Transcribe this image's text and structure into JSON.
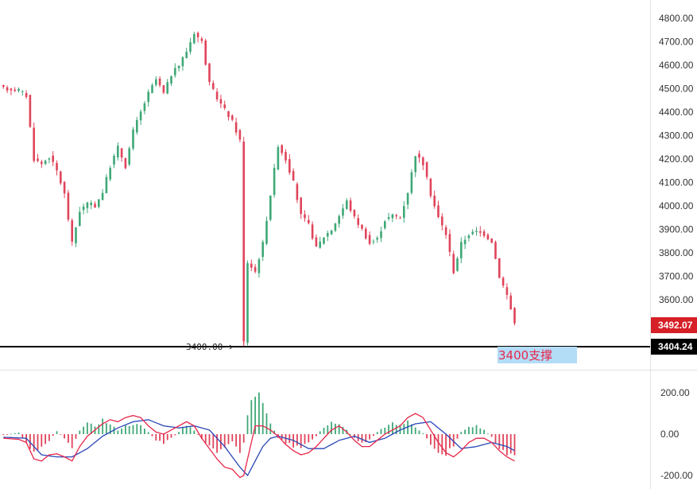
{
  "chart_data": [
    {
      "type": "candlestick",
      "ylim": [
        3380,
        4840
      ],
      "y_ticks": [
        "4800.00",
        "4700.00",
        "4600.00",
        "4500.00",
        "4400.00",
        "4300.00",
        "4200.00",
        "4100.00",
        "4000.00",
        "3900.00",
        "3800.00",
        "3700.00",
        "3600.00"
      ],
      "y_tick_values": [
        4800,
        4700,
        4600,
        4500,
        4400,
        4300,
        4200,
        4100,
        4000,
        3900,
        3800,
        3700,
        3600
      ],
      "last_price": {
        "label": "3492.07",
        "value": 3492.07,
        "color": "#d61f26"
      },
      "support_line": {
        "value": 3404.24,
        "label": "3404.24",
        "left_text": "3400.00",
        "color": "#000000"
      },
      "annotation": {
        "text": "3400支撑",
        "bg": "#b3dcf7",
        "color": "#e8264a"
      },
      "colors": {
        "up": "#3fa877",
        "down": "#e0445a"
      },
      "anchors": [
        [
          0,
          4500
        ],
        [
          4,
          4495
        ],
        [
          6,
          4470
        ],
        [
          8,
          4200
        ],
        [
          10,
          4180
        ],
        [
          12,
          4210
        ],
        [
          14,
          4150
        ],
        [
          16,
          4050
        ],
        [
          18,
          3840
        ],
        [
          20,
          3980
        ],
        [
          22,
          4010
        ],
        [
          24,
          4000
        ],
        [
          26,
          4060
        ],
        [
          28,
          4170
        ],
        [
          30,
          4250
        ],
        [
          32,
          4170
        ],
        [
          34,
          4320
        ],
        [
          36,
          4400
        ],
        [
          38,
          4480
        ],
        [
          40,
          4540
        ],
        [
          42,
          4480
        ],
        [
          44,
          4560
        ],
        [
          46,
          4600
        ],
        [
          48,
          4660
        ],
        [
          50,
          4740
        ],
        [
          52,
          4700
        ],
        [
          54,
          4520
        ],
        [
          56,
          4460
        ],
        [
          58,
          4410
        ],
        [
          60,
          4360
        ],
        [
          62,
          4280
        ],
        [
          63,
          3420
        ],
        [
          64,
          3760
        ],
        [
          66,
          3720
        ],
        [
          68,
          3840
        ],
        [
          70,
          4050
        ],
        [
          72,
          4260
        ],
        [
          74,
          4200
        ],
        [
          76,
          4100
        ],
        [
          78,
          3960
        ],
        [
          80,
          3920
        ],
        [
          82,
          3820
        ],
        [
          84,
          3870
        ],
        [
          86,
          3900
        ],
        [
          88,
          3960
        ],
        [
          90,
          4020
        ],
        [
          92,
          3950
        ],
        [
          94,
          3900
        ],
        [
          96,
          3840
        ],
        [
          98,
          3860
        ],
        [
          100,
          3940
        ],
        [
          102,
          3960
        ],
        [
          104,
          3950
        ],
        [
          106,
          4060
        ],
        [
          108,
          4220
        ],
        [
          110,
          4180
        ],
        [
          112,
          4050
        ],
        [
          114,
          3950
        ],
        [
          116,
          3880
        ],
        [
          118,
          3720
        ],
        [
          120,
          3840
        ],
        [
          122,
          3880
        ],
        [
          124,
          3890
        ],
        [
          126,
          3880
        ],
        [
          128,
          3850
        ],
        [
          130,
          3700
        ],
        [
          132,
          3620
        ],
        [
          134,
          3500
        ]
      ]
    },
    {
      "type": "macd",
      "ylim": [
        -230,
        230
      ],
      "y_ticks": [
        "200.00",
        "0.00",
        "-200.00"
      ],
      "y_tick_values": [
        200,
        0,
        -200
      ],
      "colors": {
        "hist_up": "#3fa877",
        "hist_down": "#e0445a",
        "line_fast": "#e8264a",
        "line_slow": "#2a46b8"
      },
      "hist_anchors": [
        [
          0,
          -5
        ],
        [
          4,
          8
        ],
        [
          6,
          -40
        ],
        [
          8,
          -90
        ],
        [
          10,
          -60
        ],
        [
          12,
          -30
        ],
        [
          14,
          15
        ],
        [
          16,
          -20
        ],
        [
          18,
          -60
        ],
        [
          20,
          20
        ],
        [
          22,
          50
        ],
        [
          24,
          40
        ],
        [
          26,
          70
        ],
        [
          28,
          45
        ],
        [
          30,
          20
        ],
        [
          32,
          40
        ],
        [
          34,
          50
        ],
        [
          36,
          40
        ],
        [
          38,
          10
        ],
        [
          40,
          -30
        ],
        [
          42,
          -45
        ],
        [
          44,
          -20
        ],
        [
          46,
          10
        ],
        [
          48,
          45
        ],
        [
          50,
          20
        ],
        [
          52,
          -25
        ],
        [
          54,
          -55
        ],
        [
          56,
          -85
        ],
        [
          58,
          -70
        ],
        [
          60,
          -40
        ],
        [
          62,
          -95
        ],
        [
          63,
          -45
        ],
        [
          64,
          90
        ],
        [
          66,
          200
        ],
        [
          68,
          160
        ],
        [
          70,
          50
        ],
        [
          72,
          -20
        ],
        [
          74,
          -40
        ],
        [
          76,
          -60
        ],
        [
          78,
          -70
        ],
        [
          80,
          -40
        ],
        [
          82,
          -10
        ],
        [
          84,
          35
        ],
        [
          86,
          60
        ],
        [
          88,
          45
        ],
        [
          90,
          20
        ],
        [
          92,
          -20
        ],
        [
          94,
          -45
        ],
        [
          96,
          -25
        ],
        [
          98,
          10
        ],
        [
          100,
          35
        ],
        [
          102,
          50
        ],
        [
          104,
          45
        ],
        [
          106,
          60
        ],
        [
          108,
          35
        ],
        [
          110,
          5
        ],
        [
          112,
          -50
        ],
        [
          114,
          -85
        ],
        [
          116,
          -100
        ],
        [
          118,
          -55
        ],
        [
          120,
          10
        ],
        [
          122,
          35
        ],
        [
          124,
          40
        ],
        [
          126,
          20
        ],
        [
          128,
          -15
        ],
        [
          130,
          -65
        ],
        [
          132,
          -95
        ],
        [
          134,
          -100
        ]
      ],
      "fast_anchors": [
        [
          0,
          -20
        ],
        [
          4,
          -25
        ],
        [
          6,
          -40
        ],
        [
          8,
          -120
        ],
        [
          10,
          -130
        ],
        [
          12,
          -100
        ],
        [
          14,
          -95
        ],
        [
          16,
          -110
        ],
        [
          18,
          -130
        ],
        [
          20,
          -60
        ],
        [
          22,
          -10
        ],
        [
          24,
          20
        ],
        [
          26,
          50
        ],
        [
          28,
          70
        ],
        [
          30,
          60
        ],
        [
          32,
          80
        ],
        [
          34,
          90
        ],
        [
          36,
          80
        ],
        [
          38,
          40
        ],
        [
          40,
          10
        ],
        [
          42,
          0
        ],
        [
          44,
          20
        ],
        [
          46,
          40
        ],
        [
          48,
          60
        ],
        [
          50,
          40
        ],
        [
          52,
          -20
        ],
        [
          54,
          -70
        ],
        [
          56,
          -120
        ],
        [
          58,
          -160
        ],
        [
          60,
          -170
        ],
        [
          62,
          -210
        ],
        [
          63,
          -200
        ],
        [
          64,
          -120
        ],
        [
          66,
          40
        ],
        [
          68,
          40
        ],
        [
          70,
          20
        ],
        [
          72,
          -10
        ],
        [
          74,
          -50
        ],
        [
          76,
          -80
        ],
        [
          78,
          -100
        ],
        [
          80,
          -90
        ],
        [
          82,
          -60
        ],
        [
          84,
          -20
        ],
        [
          86,
          20
        ],
        [
          88,
          40
        ],
        [
          90,
          10
        ],
        [
          92,
          -30
        ],
        [
          94,
          -60
        ],
        [
          96,
          -60
        ],
        [
          98,
          -30
        ],
        [
          100,
          0
        ],
        [
          102,
          20
        ],
        [
          104,
          40
        ],
        [
          106,
          80
        ],
        [
          108,
          100
        ],
        [
          110,
          80
        ],
        [
          112,
          20
        ],
        [
          114,
          -40
        ],
        [
          116,
          -90
        ],
        [
          118,
          -110
        ],
        [
          120,
          -80
        ],
        [
          122,
          -40
        ],
        [
          124,
          -20
        ],
        [
          126,
          -20
        ],
        [
          128,
          -40
        ],
        [
          130,
          -80
        ],
        [
          132,
          -110
        ],
        [
          134,
          -130
        ]
      ],
      "slow_anchors": [
        [
          0,
          -15
        ],
        [
          6,
          -20
        ],
        [
          10,
          -100
        ],
        [
          14,
          -110
        ],
        [
          18,
          -110
        ],
        [
          22,
          -70
        ],
        [
          26,
          -10
        ],
        [
          30,
          30
        ],
        [
          34,
          60
        ],
        [
          38,
          70
        ],
        [
          42,
          40
        ],
        [
          46,
          30
        ],
        [
          50,
          40
        ],
        [
          54,
          20
        ],
        [
          58,
          -60
        ],
        [
          62,
          -160
        ],
        [
          64,
          -200
        ],
        [
          66,
          -130
        ],
        [
          68,
          -60
        ],
        [
          70,
          -20
        ],
        [
          72,
          -10
        ],
        [
          76,
          -30
        ],
        [
          80,
          -70
        ],
        [
          84,
          -70
        ],
        [
          88,
          -30
        ],
        [
          92,
          -10
        ],
        [
          96,
          -40
        ],
        [
          100,
          -20
        ],
        [
          104,
          20
        ],
        [
          108,
          50
        ],
        [
          112,
          60
        ],
        [
          116,
          0
        ],
        [
          120,
          -70
        ],
        [
          124,
          -60
        ],
        [
          128,
          -40
        ],
        [
          132,
          -60
        ],
        [
          134,
          -80
        ]
      ]
    }
  ]
}
